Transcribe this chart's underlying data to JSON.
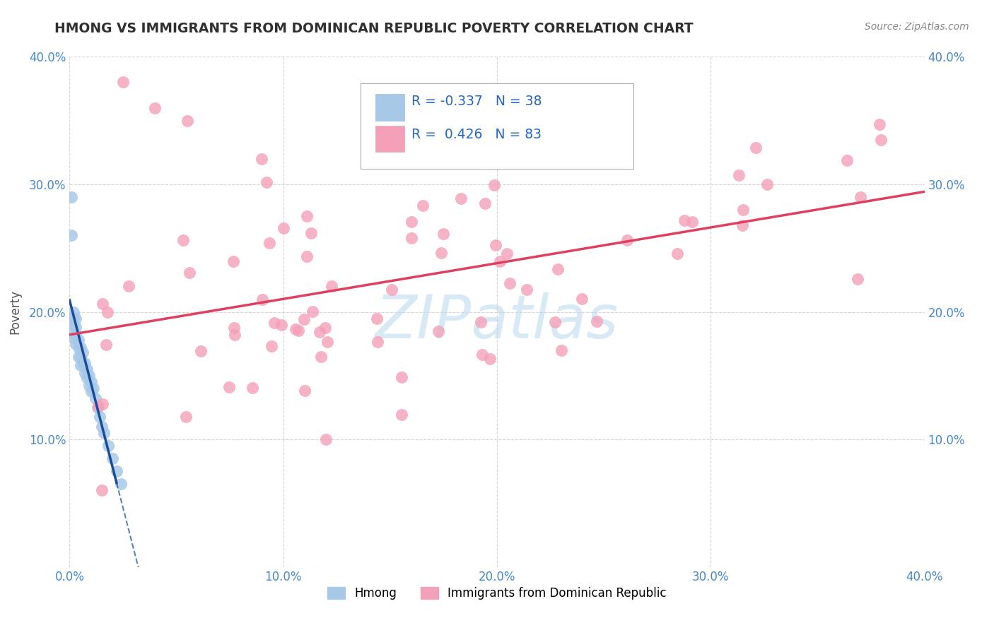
{
  "title": "HMONG VS IMMIGRANTS FROM DOMINICAN REPUBLIC POVERTY CORRELATION CHART",
  "source": "Source: ZipAtlas.com",
  "ylabel": "Poverty",
  "xlim": [
    0.0,
    0.4
  ],
  "ylim": [
    0.0,
    0.4
  ],
  "watermark": "ZIPatlas",
  "legend_r1": "-0.337",
  "legend_n1": "38",
  "legend_r2": "0.426",
  "legend_n2": "83",
  "hmong_color": "#a8c8e8",
  "dr_color": "#f4a0b8",
  "hmong_line_color": "#1a4d99",
  "dr_line_color": "#e04060",
  "background_color": "#ffffff",
  "grid_color": "#cccccc",
  "title_color": "#303030",
  "watermark_color": "#b8d8f0",
  "axis_label_color": "#4488cc"
}
